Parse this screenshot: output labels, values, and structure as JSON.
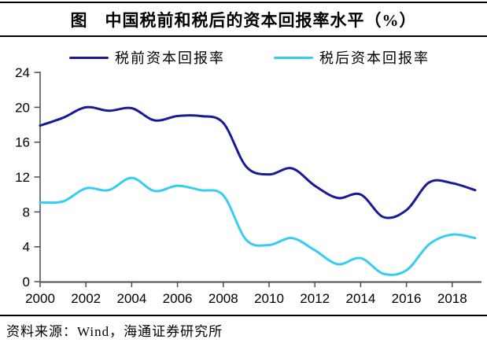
{
  "title": "图　中国税前和税后的资本回报率水平（%）",
  "source": "资料来源：Wind，海通证券研究所",
  "colors": {
    "pretax_line": "#1a1a96",
    "posttax_line": "#35cdf2",
    "axis": "#4d4d4d",
    "text": "#000000",
    "background": "#ffffff"
  },
  "chart_data": {
    "type": "line",
    "title": "图　中国税前和税后的资本回报率水平（%）",
    "xlabel": "",
    "ylabel": "",
    "unit": "%",
    "x": [
      2000,
      2001,
      2002,
      2003,
      2004,
      2005,
      2006,
      2007,
      2008,
      2009,
      2010,
      2011,
      2012,
      2013,
      2014,
      2015,
      2016,
      2017,
      2018,
      2019
    ],
    "series": [
      {
        "name": "税前资本回报率",
        "color": "#1a1a96",
        "values": [
          17.9,
          18.8,
          20.0,
          19.6,
          19.9,
          18.5,
          19.0,
          19.0,
          18.2,
          13.2,
          12.3,
          13.0,
          11.0,
          9.6,
          10.0,
          7.4,
          8.2,
          11.4,
          11.3,
          10.5
        ]
      },
      {
        "name": "税后资本回报率",
        "color": "#35cdf2",
        "values": [
          9.1,
          9.2,
          10.7,
          10.5,
          11.9,
          10.4,
          11.0,
          10.5,
          9.9,
          4.8,
          4.2,
          5.0,
          3.6,
          2.0,
          2.7,
          0.9,
          1.3,
          4.3,
          5.4,
          5.0
        ]
      }
    ],
    "ylim": [
      0,
      24
    ],
    "y_ticks": [
      0,
      4,
      8,
      12,
      16,
      20,
      24
    ],
    "x_ticks": [
      2000,
      2002,
      2004,
      2006,
      2008,
      2010,
      2012,
      2014,
      2016,
      2018
    ],
    "grid": false,
    "legend_position": "top",
    "line_style": "smooth"
  }
}
